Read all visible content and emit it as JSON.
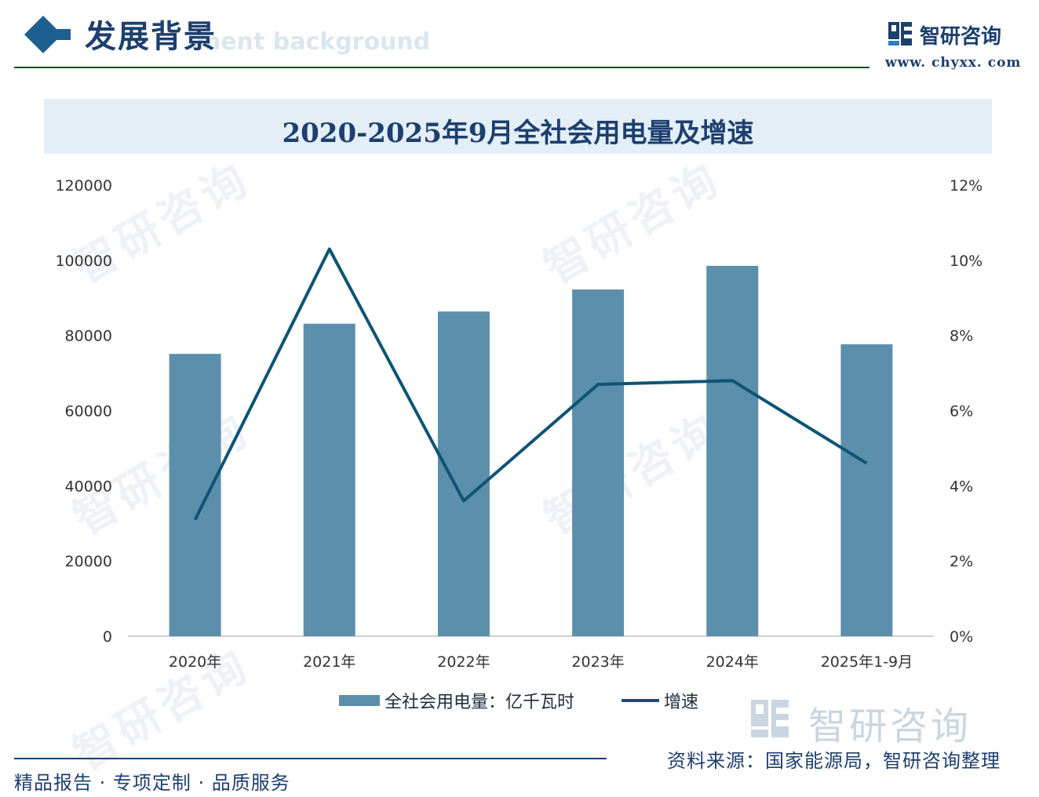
{
  "header": {
    "section_title": "发展背景",
    "section_subtitle": "ment background",
    "brand_name": "智研咨询",
    "brand_url": "www. chyxx. com"
  },
  "chart_data": {
    "type": "bar+line",
    "title": "2020-2025年9月全社会用电量及增速",
    "categories": [
      "2020年",
      "2021年",
      "2022年",
      "2023年",
      "2024年",
      "2025年1-9月"
    ],
    "series": [
      {
        "name": "全社会用电量：亿千瓦时",
        "type": "bar",
        "axis": "left",
        "color": "#5b8fac",
        "values": [
          75110,
          83128,
          86372,
          92241,
          98521,
          77675
        ]
      },
      {
        "name": "增速",
        "type": "line",
        "axis": "right",
        "color": "#0f5475",
        "values": [
          3.1,
          10.3,
          3.6,
          6.7,
          6.8,
          4.6
        ]
      }
    ],
    "y_left": {
      "min": 0,
      "max": 120000,
      "ticks": [
        "0",
        "20000",
        "40000",
        "60000",
        "80000",
        "100000",
        "120000"
      ]
    },
    "y_right": {
      "min": 0,
      "max": 12,
      "ticks": [
        "0%",
        "2%",
        "4%",
        "6%",
        "8%",
        "10%",
        "12%"
      ]
    },
    "legend_position": "bottom-center"
  },
  "watermark": {
    "brand_text": "智研咨询"
  },
  "source": "资料来源：国家能源局，智研咨询整理",
  "footer": "精品报告 · 专项定制 · 品质服务"
}
